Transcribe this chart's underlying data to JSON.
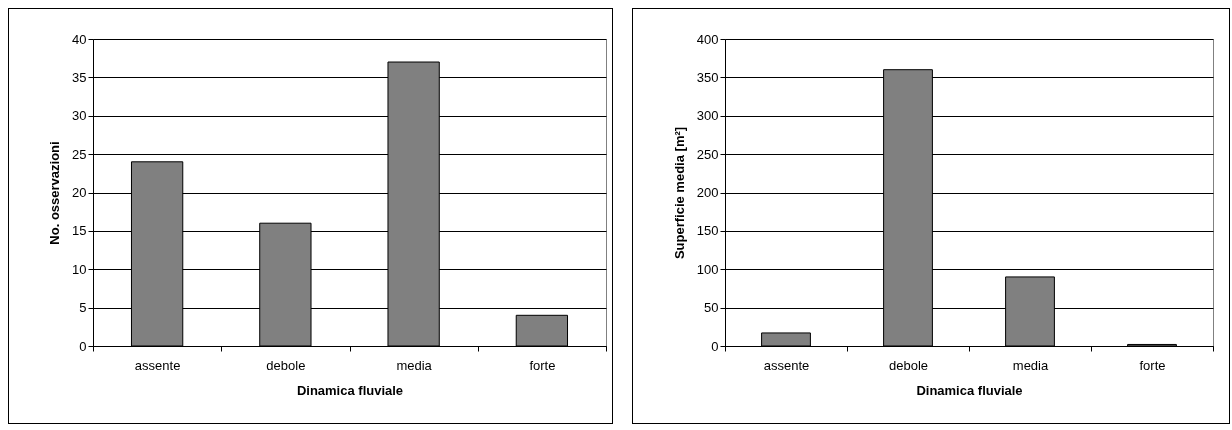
{
  "chart_data": [
    {
      "type": "bar",
      "categories": [
        "assente",
        "debole",
        "media",
        "forte"
      ],
      "values": [
        24,
        16,
        37,
        4
      ],
      "color": "#808080",
      "xlabel": "Dinamica fluviale",
      "ylabel": "No. osservazioni",
      "ylim": [
        0,
        40
      ],
      "yticks": [
        0,
        5,
        10,
        15,
        20,
        25,
        30,
        35,
        40
      ],
      "grid": "y"
    },
    {
      "type": "bar",
      "categories": [
        "assente",
        "debole",
        "media",
        "forte"
      ],
      "values": [
        17,
        360,
        90,
        2
      ],
      "color": "#808080",
      "xlabel": "Dinamica fluviale",
      "ylabel": "Superficie media [m²]",
      "ylim": [
        0,
        400
      ],
      "yticks": [
        0,
        50,
        100,
        150,
        200,
        250,
        300,
        350,
        400
      ],
      "grid": "y"
    }
  ]
}
